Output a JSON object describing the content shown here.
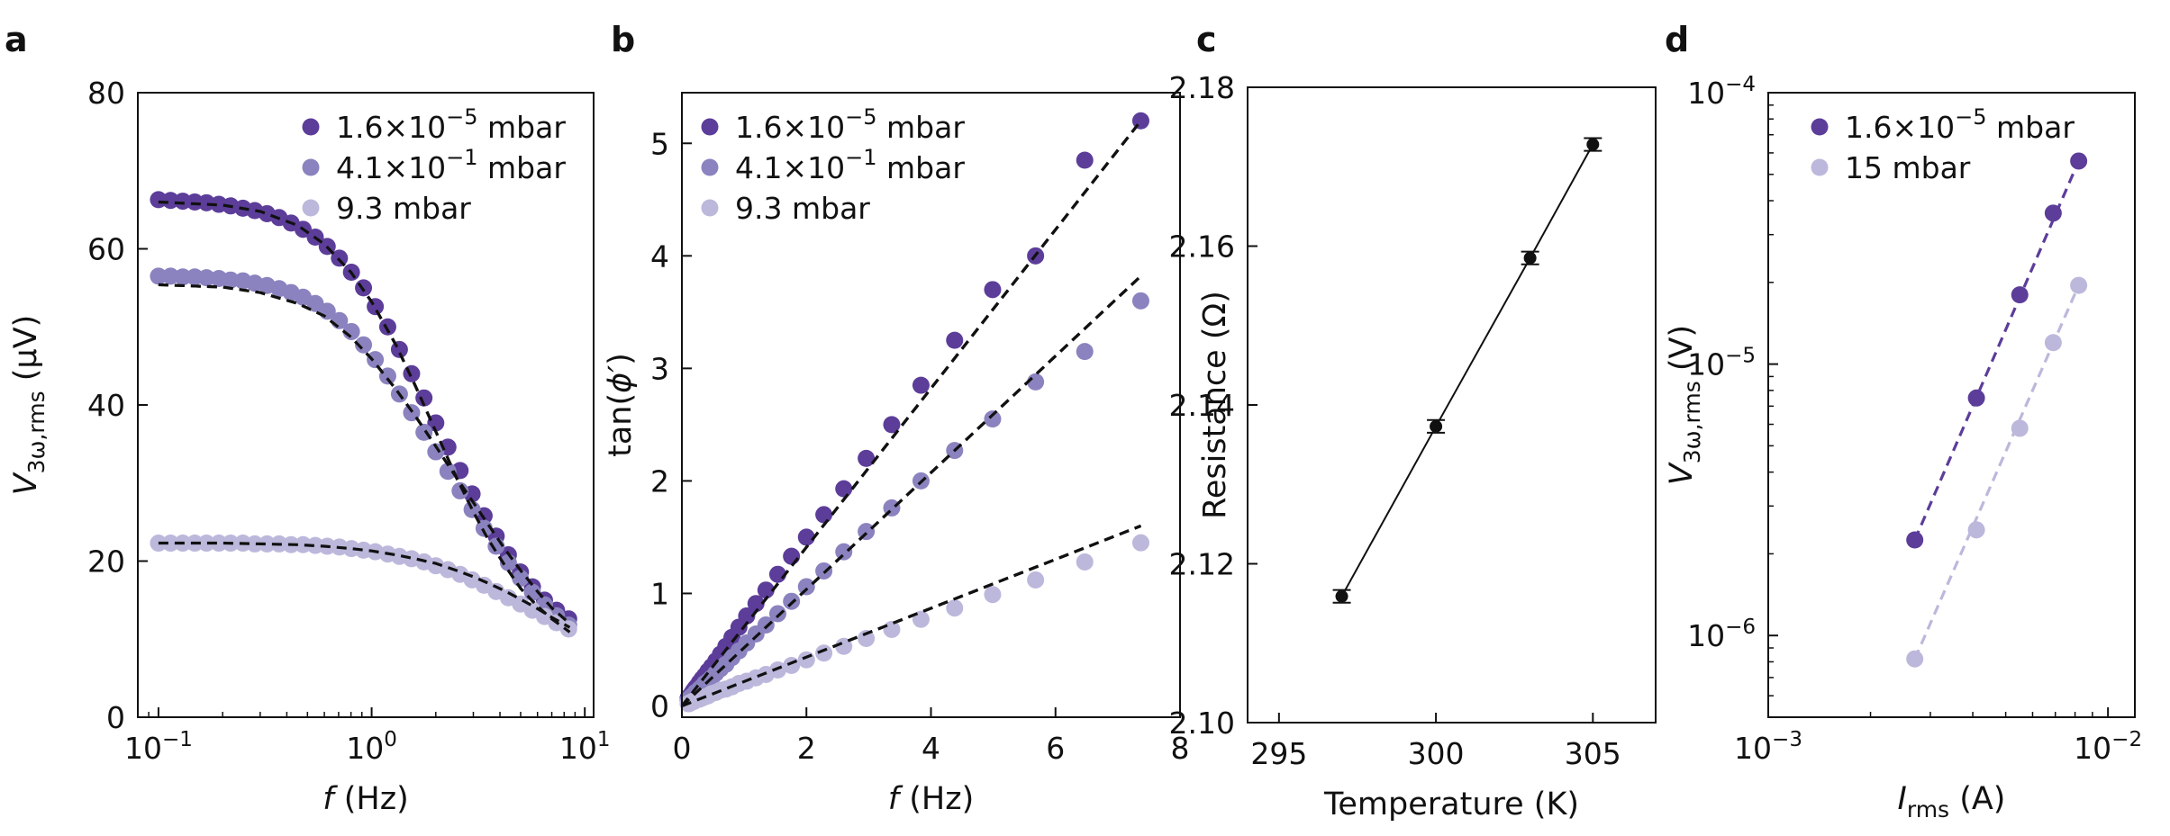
{
  "colors": {
    "dark": "#5c3d99",
    "mid": "#8a83bf",
    "light": "#bcb8dc",
    "fit": "#111111",
    "black": "#111111"
  },
  "chart_data": [
    {
      "panel": "a",
      "type": "scatter",
      "xscale": "log",
      "xlabel": {
        "main": "f",
        "unit": " (Hz)"
      },
      "ylabel": {
        "main": "V",
        "sub": "3ω,rms",
        "unit": " (μV)"
      },
      "xlim": [
        0.08,
        11
      ],
      "ylim": [
        0,
        80
      ],
      "xticks": [
        {
          "v": 0.1,
          "base": "10",
          "exp": "−1"
        },
        {
          "v": 1,
          "base": "10",
          "exp": "0"
        },
        {
          "v": 10,
          "base": "10",
          "exp": "1"
        }
      ],
      "yticks": [
        {
          "v": 0,
          "label": "0"
        },
        {
          "v": 20,
          "label": "20"
        },
        {
          "v": 40,
          "label": "40"
        },
        {
          "v": 60,
          "label": "60"
        },
        {
          "v": 80,
          "label": "80"
        }
      ],
      "legend": {
        "position": "top-right",
        "entries": [
          {
            "name": "1.6×10",
            "exp": "−5",
            "unit": " mbar",
            "color": "dark"
          },
          {
            "name": "4.1×10",
            "exp": "−1",
            "unit": " mbar",
            "color": "mid"
          },
          {
            "name": "9.3 mbar",
            "exp": "",
            "unit": "",
            "color": "light"
          }
        ]
      },
      "series": [
        {
          "name": "1.6×10−5 mbar",
          "color": "dark",
          "x": [
            0.1,
            0.114,
            0.13,
            0.148,
            0.168,
            0.192,
            0.218,
            0.249,
            0.283,
            0.323,
            0.368,
            0.419,
            0.477,
            0.544,
            0.619,
            0.706,
            0.804,
            0.916,
            1.04,
            1.19,
            1.35,
            1.54,
            1.76,
            2.0,
            2.28,
            2.6,
            2.96,
            3.37,
            3.84,
            4.38,
            4.99,
            5.68,
            6.47,
            7.37,
            8.4
          ],
          "y": [
            66.3,
            66.2,
            66.1,
            66.0,
            65.9,
            65.7,
            65.5,
            65.2,
            64.9,
            64.5,
            64.0,
            63.3,
            62.5,
            61.5,
            60.3,
            58.8,
            57.0,
            55.0,
            52.6,
            50.0,
            47.1,
            44.0,
            40.9,
            37.7,
            34.6,
            31.6,
            28.6,
            25.8,
            23.2,
            20.8,
            18.6,
            16.7,
            15.0,
            13.7,
            12.6
          ]
        },
        {
          "name": "4.1×10−1 mbar",
          "color": "mid",
          "x": [
            0.1,
            0.114,
            0.13,
            0.148,
            0.168,
            0.192,
            0.218,
            0.249,
            0.283,
            0.323,
            0.368,
            0.419,
            0.477,
            0.544,
            0.619,
            0.706,
            0.804,
            0.916,
            1.04,
            1.19,
            1.35,
            1.54,
            1.76,
            2.0,
            2.28,
            2.6,
            2.96,
            3.37,
            3.84,
            4.38,
            4.99,
            5.68,
            6.47,
            7.37,
            8.4
          ],
          "y": [
            56.5,
            56.5,
            56.4,
            56.4,
            56.3,
            56.2,
            56.0,
            55.9,
            55.6,
            55.3,
            54.9,
            54.4,
            53.8,
            53.0,
            52.0,
            50.8,
            49.4,
            47.7,
            45.8,
            43.7,
            41.4,
            39.0,
            36.5,
            34.0,
            31.5,
            29.0,
            26.6,
            24.2,
            21.9,
            19.8,
            17.8,
            16.0,
            14.4,
            13.0,
            11.8
          ]
        },
        {
          "name": "9.3 mbar",
          "color": "light",
          "x": [
            0.1,
            0.114,
            0.13,
            0.148,
            0.168,
            0.192,
            0.218,
            0.249,
            0.283,
            0.323,
            0.368,
            0.419,
            0.477,
            0.544,
            0.619,
            0.706,
            0.804,
            0.916,
            1.04,
            1.19,
            1.35,
            1.54,
            1.76,
            2.0,
            2.28,
            2.6,
            2.96,
            3.37,
            3.84,
            4.38,
            4.99,
            5.68,
            6.47,
            7.37,
            8.4
          ],
          "y": [
            22.3,
            22.3,
            22.3,
            22.3,
            22.3,
            22.3,
            22.3,
            22.3,
            22.2,
            22.2,
            22.2,
            22.1,
            22.1,
            22.0,
            21.9,
            21.8,
            21.6,
            21.4,
            21.2,
            20.9,
            20.6,
            20.3,
            19.9,
            19.4,
            18.9,
            18.3,
            17.6,
            16.9,
            16.1,
            15.3,
            14.5,
            13.7,
            12.9,
            12.1,
            11.3
          ]
        }
      ],
      "fits": [
        {
          "x": [
            0.1,
            0.2,
            0.3,
            0.45,
            0.6,
            0.8,
            1.0,
            1.3,
            1.6,
            2.0,
            2.5,
            3.0,
            3.5,
            4.2,
            5.0,
            6.0,
            7.0,
            8.5
          ],
          "y": [
            66.0,
            65.6,
            64.8,
            63.0,
            60.6,
            57.0,
            53.2,
            47.7,
            42.5,
            36.6,
            30.7,
            26.3,
            22.9,
            19.5,
            16.5,
            14.2,
            12.6,
            10.9
          ]
        },
        {
          "x": [
            0.1,
            0.2,
            0.3,
            0.45,
            0.6,
            0.8,
            1.0,
            1.3,
            1.6,
            2.0,
            2.5,
            3.0,
            3.5,
            4.2,
            5.0,
            6.0,
            7.0,
            8.5
          ],
          "y": [
            55.4,
            55.1,
            54.4,
            53.0,
            51.4,
            48.7,
            45.9,
            42.0,
            38.6,
            34.7,
            30.7,
            27.5,
            24.8,
            21.6,
            18.8,
            16.1,
            14.0,
            12.0
          ]
        },
        {
          "x": [
            0.1,
            0.2,
            0.3,
            0.45,
            0.6,
            0.8,
            1.0,
            1.3,
            1.6,
            2.0,
            2.5,
            3.0,
            3.5,
            4.2,
            5.0,
            6.0,
            7.0,
            8.5
          ],
          "y": [
            22.3,
            22.3,
            22.2,
            22.1,
            21.9,
            21.6,
            21.3,
            20.8,
            20.3,
            19.7,
            18.8,
            18.0,
            17.2,
            16.2,
            15.1,
            13.9,
            12.8,
            11.5
          ]
        }
      ]
    },
    {
      "panel": "b",
      "type": "scatter",
      "xscale": "linear",
      "xlabel": {
        "main": "f",
        "unit": " (Hz)"
      },
      "ylabel": {
        "main": "tan(",
        "sym": "ϕ′",
        "unit": ")"
      },
      "xlim": [
        0,
        8
      ],
      "ylim": [
        -0.1,
        5.45
      ],
      "xticks": [
        {
          "v": 0,
          "label": "0"
        },
        {
          "v": 2,
          "label": "2"
        },
        {
          "v": 4,
          "label": "4"
        },
        {
          "v": 6,
          "label": "6"
        },
        {
          "v": 8,
          "label": "8"
        }
      ],
      "yticks": [
        {
          "v": 0,
          "label": "0"
        },
        {
          "v": 1,
          "label": "1"
        },
        {
          "v": 2,
          "label": "2"
        },
        {
          "v": 3,
          "label": "3"
        },
        {
          "v": 4,
          "label": "4"
        },
        {
          "v": 5,
          "label": "5"
        }
      ],
      "legend": {
        "position": "top-left",
        "entries": [
          {
            "name": "1.6×10",
            "exp": "−5",
            "unit": " mbar",
            "color": "dark"
          },
          {
            "name": "4.1×10",
            "exp": "−1",
            "unit": " mbar",
            "color": "mid"
          },
          {
            "name": "9.3 mbar",
            "exp": "",
            "unit": "",
            "color": "light"
          }
        ]
      },
      "series": [
        {
          "name": "1.6×10−5 mbar",
          "color": "dark",
          "x": [
            0.1,
            0.114,
            0.13,
            0.148,
            0.168,
            0.192,
            0.218,
            0.249,
            0.283,
            0.323,
            0.368,
            0.419,
            0.477,
            0.544,
            0.619,
            0.706,
            0.804,
            0.916,
            1.04,
            1.19,
            1.35,
            1.54,
            1.76,
            2.0,
            2.28,
            2.6,
            2.96,
            3.37,
            3.84,
            4.38,
            4.99,
            5.68,
            6.47,
            7.37
          ],
          "y": [
            0.07,
            0.08,
            0.09,
            0.1,
            0.12,
            0.14,
            0.16,
            0.18,
            0.21,
            0.24,
            0.27,
            0.31,
            0.35,
            0.4,
            0.46,
            0.53,
            0.61,
            0.7,
            0.8,
            0.91,
            1.03,
            1.17,
            1.33,
            1.5,
            1.7,
            1.93,
            2.2,
            2.5,
            2.85,
            3.25,
            3.7,
            4.0,
            4.85,
            5.2
          ]
        },
        {
          "name": "4.1×10−1 mbar",
          "color": "mid",
          "x": [
            0.1,
            0.114,
            0.13,
            0.148,
            0.168,
            0.192,
            0.218,
            0.249,
            0.283,
            0.323,
            0.368,
            0.419,
            0.477,
            0.544,
            0.619,
            0.706,
            0.804,
            0.916,
            1.04,
            1.19,
            1.35,
            1.54,
            1.76,
            2.0,
            2.28,
            2.6,
            2.96,
            3.37,
            3.84,
            4.38,
            4.99,
            5.68,
            6.47,
            7.37
          ],
          "y": [
            0.05,
            0.06,
            0.07,
            0.08,
            0.09,
            0.1,
            0.12,
            0.13,
            0.15,
            0.17,
            0.2,
            0.22,
            0.25,
            0.29,
            0.33,
            0.37,
            0.43,
            0.49,
            0.56,
            0.64,
            0.72,
            0.82,
            0.93,
            1.06,
            1.2,
            1.37,
            1.55,
            1.76,
            2.0,
            2.27,
            2.55,
            2.88,
            3.15,
            3.6
          ]
        },
        {
          "name": "9.3 mbar",
          "color": "light",
          "x": [
            0.1,
            0.114,
            0.13,
            0.148,
            0.168,
            0.192,
            0.218,
            0.249,
            0.283,
            0.323,
            0.368,
            0.419,
            0.477,
            0.544,
            0.619,
            0.706,
            0.804,
            0.916,
            1.04,
            1.19,
            1.35,
            1.54,
            1.76,
            2.0,
            2.28,
            2.6,
            2.96,
            3.37,
            3.84,
            4.38,
            4.99,
            5.68,
            6.47,
            7.37
          ],
          "y": [
            0.02,
            0.02,
            0.03,
            0.03,
            0.04,
            0.04,
            0.05,
            0.06,
            0.06,
            0.07,
            0.08,
            0.09,
            0.11,
            0.12,
            0.14,
            0.15,
            0.17,
            0.2,
            0.22,
            0.25,
            0.28,
            0.32,
            0.36,
            0.41,
            0.47,
            0.53,
            0.6,
            0.68,
            0.77,
            0.87,
            0.99,
            1.12,
            1.28,
            1.45
          ]
        }
      ],
      "fits": [
        {
          "x": [
            0,
            7.37
          ],
          "y": [
            0,
            5.2
          ]
        },
        {
          "x": [
            0,
            7.37
          ],
          "y": [
            0,
            3.82
          ]
        },
        {
          "x": [
            0,
            7.37
          ],
          "y": [
            0,
            1.6
          ]
        }
      ]
    },
    {
      "panel": "c",
      "type": "line",
      "xlabel": {
        "main": "Temperature (K)"
      },
      "ylabel": {
        "main": "Resistance (Ω)"
      },
      "xlim": [
        294,
        307
      ],
      "ylim": [
        2.1,
        2.18
      ],
      "xticks": [
        {
          "v": 295,
          "label": "295"
        },
        {
          "v": 300,
          "label": "300"
        },
        {
          "v": 305,
          "label": "305"
        }
      ],
      "yticks": [
        {
          "v": 2.1,
          "label": "2.10"
        },
        {
          "v": 2.12,
          "label": "2.12"
        },
        {
          "v": 2.14,
          "label": "2.14"
        },
        {
          "v": 2.16,
          "label": "2.16"
        },
        {
          "v": 2.18,
          "label": "2.18"
        }
      ],
      "series": [
        {
          "name": "resistance",
          "color": "black",
          "x": [
            297,
            300,
            303,
            305
          ],
          "y": [
            2.1159,
            2.1373,
            2.1585,
            2.1728
          ],
          "err": [
            0.0008,
            0.0008,
            0.0008,
            0.0008
          ]
        }
      ]
    },
    {
      "panel": "d",
      "type": "scatter",
      "xscale": "log",
      "yscale": "log",
      "xlabel": {
        "main": "I",
        "sub": "rms",
        "unit": " (A)"
      },
      "ylabel": {
        "main": "V",
        "sub": "3ω,rms",
        "unit": " (V)"
      },
      "xlim": [
        0.001,
        0.012
      ],
      "ylim": [
        5e-07,
        0.0001
      ],
      "xticks": [
        {
          "v": 0.001,
          "base": "10",
          "exp": "−3"
        },
        {
          "v": 0.01,
          "base": "10",
          "exp": "−2"
        }
      ],
      "yticks": [
        {
          "v": 1e-06,
          "base": "10",
          "exp": "−6"
        },
        {
          "v": 1e-05,
          "base": "10",
          "exp": "−5"
        },
        {
          "v": 0.0001,
          "base": "10",
          "exp": "−4"
        }
      ],
      "legend": {
        "position": "top-left",
        "entries": [
          {
            "name": "1.6×10",
            "exp": "−5",
            "unit": " mbar",
            "color": "dark"
          },
          {
            "name": "15 mbar",
            "exp": "",
            "unit": "",
            "color": "light"
          }
        ]
      },
      "series": [
        {
          "name": "1.6×10−5 mbar",
          "color": "dark",
          "x": [
            0.0027,
            0.0041,
            0.0055,
            0.0069,
            0.0082
          ],
          "y": [
            2.25e-06,
            7.5e-06,
            1.8e-05,
            3.6e-05,
            5.6e-05
          ]
        },
        {
          "name": "15 mbar",
          "color": "light",
          "x": [
            0.0027,
            0.0041,
            0.0055,
            0.0069,
            0.0082
          ],
          "y": [
            8.2e-07,
            2.45e-06,
            5.8e-06,
            1.2e-05,
            1.95e-05
          ]
        }
      ],
      "fits": [
        {
          "x": [
            0.0027,
            0.0082
          ],
          "y": [
            2.25e-06,
            5.6e-05
          ],
          "color": "dark"
        },
        {
          "x": [
            0.0027,
            0.0082
          ],
          "y": [
            8.2e-07,
            1.95e-05
          ],
          "color": "light"
        }
      ]
    }
  ]
}
